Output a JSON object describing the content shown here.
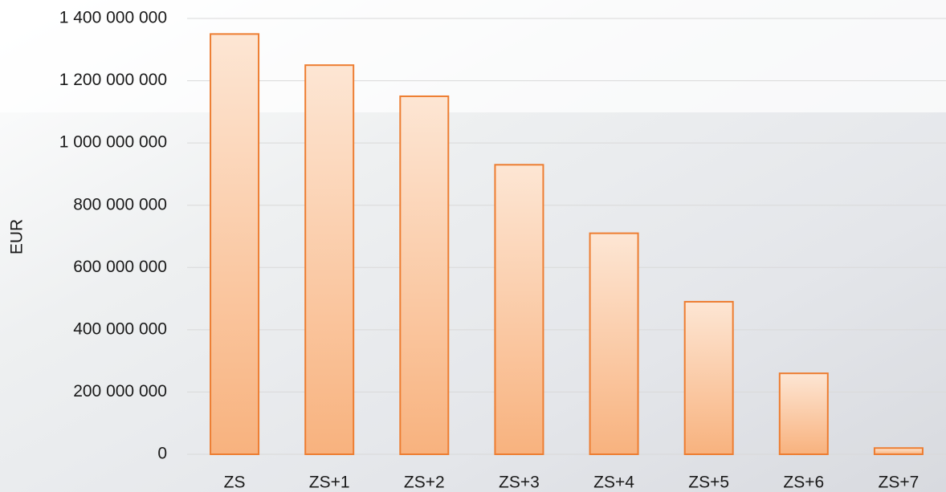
{
  "chart_data": {
    "type": "bar",
    "y_label": "EUR",
    "categories": [
      "ZS",
      "ZS+1",
      "ZS+2",
      "ZS+3",
      "ZS+4",
      "ZS+5",
      "ZS+6",
      "ZS+7"
    ],
    "values": [
      1350000000,
      1250000000,
      1150000000,
      930000000,
      710000000,
      490000000,
      260000000,
      20000000
    ],
    "color": "#ed7d31",
    "ylim": [
      0,
      1400000000
    ],
    "yticks": [
      0,
      {
        "value": 200000000,
        "label": "200 000 000"
      },
      {
        "value": 400000000,
        "label": "400 000 000"
      },
      {
        "value": 600000000,
        "label": "600 000 000"
      },
      {
        "value": 800000000,
        "label": "800 000 000"
      },
      {
        "value": 1000000000,
        "label": "1 000 000 000"
      },
      {
        "value": 1200000000,
        "label": "1 200 000 000"
      },
      {
        "value": 1400000000,
        "label": "1 400 000 000"
      }
    ],
    "grid": true
  }
}
